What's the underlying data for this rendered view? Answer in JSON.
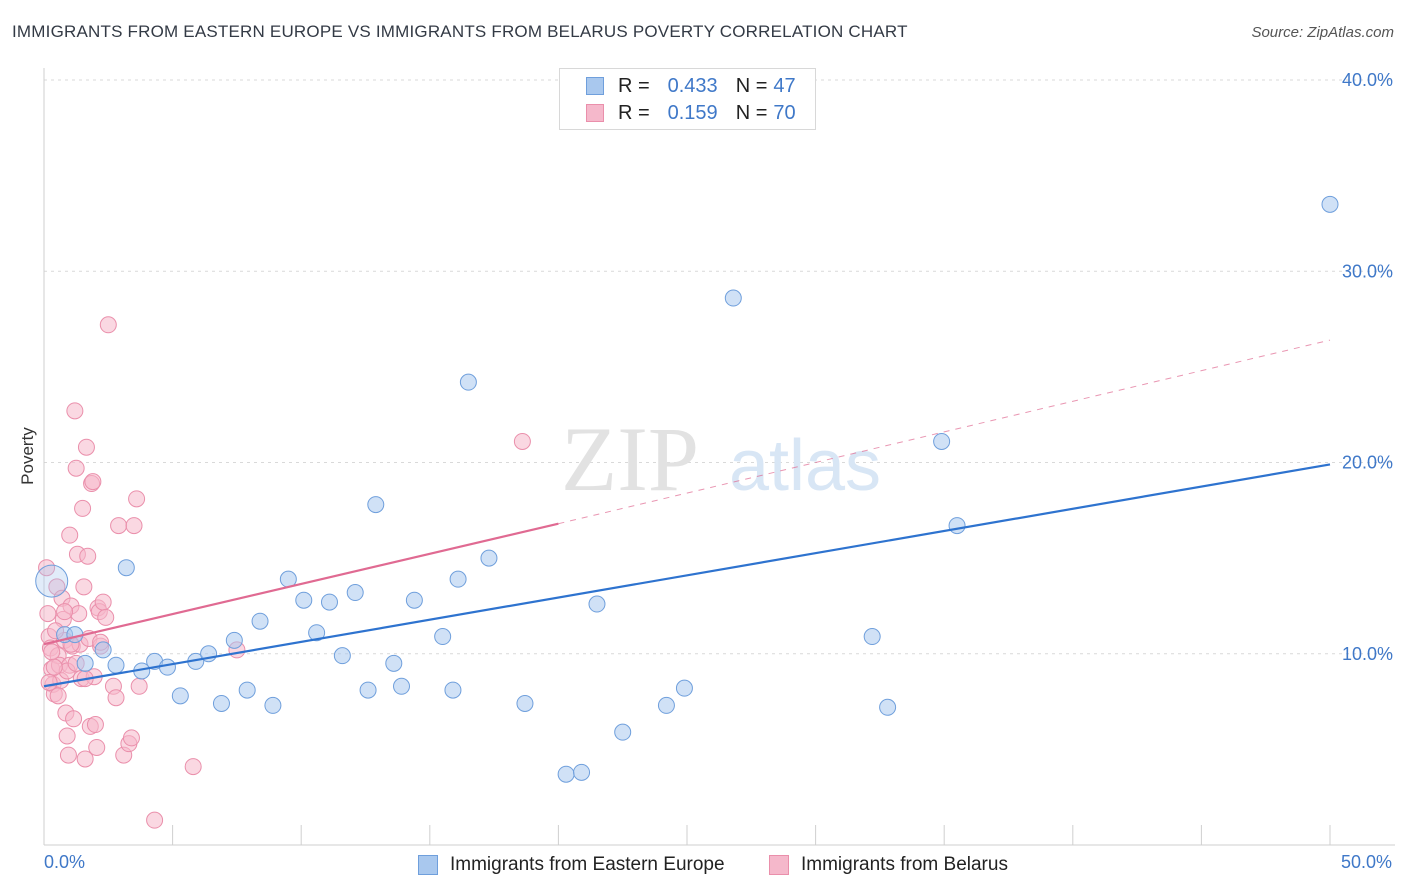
{
  "header": {
    "title": "IMMIGRANTS FROM EASTERN EUROPE VS IMMIGRANTS FROM BELARUS POVERTY CORRELATION CHART",
    "source": "Source: ZipAtlas.com"
  },
  "watermark": {
    "part1": "ZIP",
    "part2": "atlas"
  },
  "legend": {
    "series1": {
      "r_label": "R =",
      "r_value": "0.433",
      "n_label": "N =",
      "n_value": "47"
    },
    "series2": {
      "r_label": "R =",
      "r_value": "0.159",
      "n_label": "N =",
      "n_value": "70"
    }
  },
  "colors": {
    "blue_fill": "#a9c8ee",
    "blue_stroke": "#6f9fdc",
    "blue_line": "#2e73cf",
    "pink_fill": "#f5b8cb",
    "pink_stroke": "#ea8fab",
    "pink_line": "#e06a92",
    "grid": "#d9d9d9",
    "tick_text": "#3f78c8"
  },
  "chart_data": {
    "type": "scatter",
    "title": "IMMIGRANTS FROM EASTERN EUROPE VS IMMIGRANTS FROM BELARUS POVERTY CORRELATION CHART",
    "xlabel": "",
    "ylabel": "Poverty",
    "xlim": [
      0,
      50
    ],
    "ylim": [
      0,
      40
    ],
    "x_tick_labels": [
      "0.0%",
      "50.0%"
    ],
    "y_ticks": [
      10,
      20,
      30,
      40
    ],
    "y_tick_labels": [
      "10.0%",
      "20.0%",
      "30.0%",
      "40.0%"
    ],
    "grid": true,
    "legend_position": "top-center",
    "series": [
      {
        "name": "Immigrants from Eastern Europe",
        "color": "blue",
        "trend": {
          "x": [
            0,
            50
          ],
          "y": [
            8.3,
            19.9
          ],
          "style": "solid"
        },
        "points": [
          [
            0.3,
            13.8
          ],
          [
            0.8,
            11.0
          ],
          [
            1.2,
            11.0
          ],
          [
            1.6,
            9.5
          ],
          [
            2.3,
            10.2
          ],
          [
            2.8,
            9.4
          ],
          [
            3.2,
            14.5
          ],
          [
            3.8,
            9.1
          ],
          [
            4.3,
            9.6
          ],
          [
            4.8,
            9.3
          ],
          [
            5.3,
            7.8
          ],
          [
            5.9,
            9.6
          ],
          [
            6.4,
            10.0
          ],
          [
            6.9,
            7.4
          ],
          [
            7.4,
            10.7
          ],
          [
            7.9,
            8.1
          ],
          [
            8.4,
            11.7
          ],
          [
            8.9,
            7.3
          ],
          [
            9.5,
            13.9
          ],
          [
            10.1,
            12.8
          ],
          [
            10.6,
            11.1
          ],
          [
            11.1,
            12.7
          ],
          [
            11.6,
            9.9
          ],
          [
            12.1,
            13.2
          ],
          [
            12.6,
            8.1
          ],
          [
            12.9,
            17.8
          ],
          [
            13.6,
            9.5
          ],
          [
            13.9,
            8.3
          ],
          [
            14.4,
            12.8
          ],
          [
            15.5,
            10.9
          ],
          [
            15.9,
            8.1
          ],
          [
            16.1,
            13.9
          ],
          [
            16.5,
            24.2
          ],
          [
            17.3,
            15.0
          ],
          [
            18.7,
            7.4
          ],
          [
            20.3,
            3.7
          ],
          [
            20.9,
            3.8
          ],
          [
            21.5,
            12.6
          ],
          [
            22.5,
            5.9
          ],
          [
            24.2,
            7.3
          ],
          [
            24.9,
            8.2
          ],
          [
            26.8,
            28.6
          ],
          [
            32.2,
            10.9
          ],
          [
            32.8,
            7.2
          ],
          [
            34.9,
            21.1
          ],
          [
            35.5,
            16.7
          ],
          [
            50.0,
            33.5
          ]
        ]
      },
      {
        "name": "Immigrants from Belarus",
        "color": "pink",
        "trend": {
          "x": [
            0,
            20
          ],
          "y": [
            10.5,
            16.8
          ],
          "style": "solid",
          "dashed_extension": {
            "x": [
              20,
              50
            ],
            "y": [
              16.8,
              26.4
            ]
          }
        },
        "points": [
          [
            0.1,
            14.5
          ],
          [
            0.15,
            12.1
          ],
          [
            0.2,
            10.9
          ],
          [
            0.25,
            10.3
          ],
          [
            0.3,
            9.2
          ],
          [
            0.35,
            8.4
          ],
          [
            0.4,
            7.9
          ],
          [
            0.5,
            13.5
          ],
          [
            0.55,
            9.9
          ],
          [
            0.6,
            9.4
          ],
          [
            0.7,
            12.9
          ],
          [
            0.75,
            11.8
          ],
          [
            0.8,
            10.7
          ],
          [
            0.85,
            6.9
          ],
          [
            0.9,
            5.7
          ],
          [
            0.95,
            4.7
          ],
          [
            1.0,
            16.2
          ],
          [
            1.05,
            12.5
          ],
          [
            1.1,
            10.4
          ],
          [
            1.15,
            6.6
          ],
          [
            1.2,
            22.7
          ],
          [
            1.25,
            19.7
          ],
          [
            1.3,
            15.2
          ],
          [
            1.35,
            12.1
          ],
          [
            1.4,
            10.5
          ],
          [
            1.45,
            8.7
          ],
          [
            1.5,
            17.6
          ],
          [
            1.55,
            13.5
          ],
          [
            1.6,
            4.5
          ],
          [
            1.65,
            20.8
          ],
          [
            1.7,
            15.1
          ],
          [
            1.75,
            10.8
          ],
          [
            1.8,
            6.2
          ],
          [
            1.85,
            18.9
          ],
          [
            1.9,
            19.0
          ],
          [
            1.95,
            8.8
          ],
          [
            2.0,
            6.3
          ],
          [
            2.05,
            5.1
          ],
          [
            2.1,
            12.4
          ],
          [
            2.15,
            12.2
          ],
          [
            2.2,
            10.4
          ],
          [
            2.3,
            12.7
          ],
          [
            2.4,
            11.9
          ],
          [
            2.5,
            27.2
          ],
          [
            2.7,
            8.3
          ],
          [
            2.8,
            7.7
          ],
          [
            2.9,
            16.7
          ],
          [
            3.1,
            4.7
          ],
          [
            3.3,
            5.3
          ],
          [
            3.4,
            5.6
          ],
          [
            3.5,
            16.7
          ],
          [
            3.6,
            18.1
          ],
          [
            3.7,
            8.3
          ],
          [
            4.3,
            1.3
          ],
          [
            5.8,
            4.1
          ],
          [
            7.5,
            10.2
          ],
          [
            18.6,
            21.1
          ],
          [
            0.45,
            11.2
          ],
          [
            0.65,
            8.6
          ],
          [
            1.0,
            9.4
          ],
          [
            0.3,
            10.1
          ],
          [
            0.9,
            9.1
          ],
          [
            1.25,
            9.5
          ],
          [
            0.2,
            8.5
          ],
          [
            0.55,
            7.8
          ],
          [
            1.6,
            8.7
          ],
          [
            0.8,
            12.2
          ],
          [
            1.05,
            10.5
          ],
          [
            2.2,
            10.6
          ],
          [
            0.4,
            9.3
          ]
        ]
      }
    ]
  },
  "bottom_legend": {
    "series1_label": "Immigrants from Eastern Europe",
    "series2_label": "Immigrants from Belarus"
  }
}
